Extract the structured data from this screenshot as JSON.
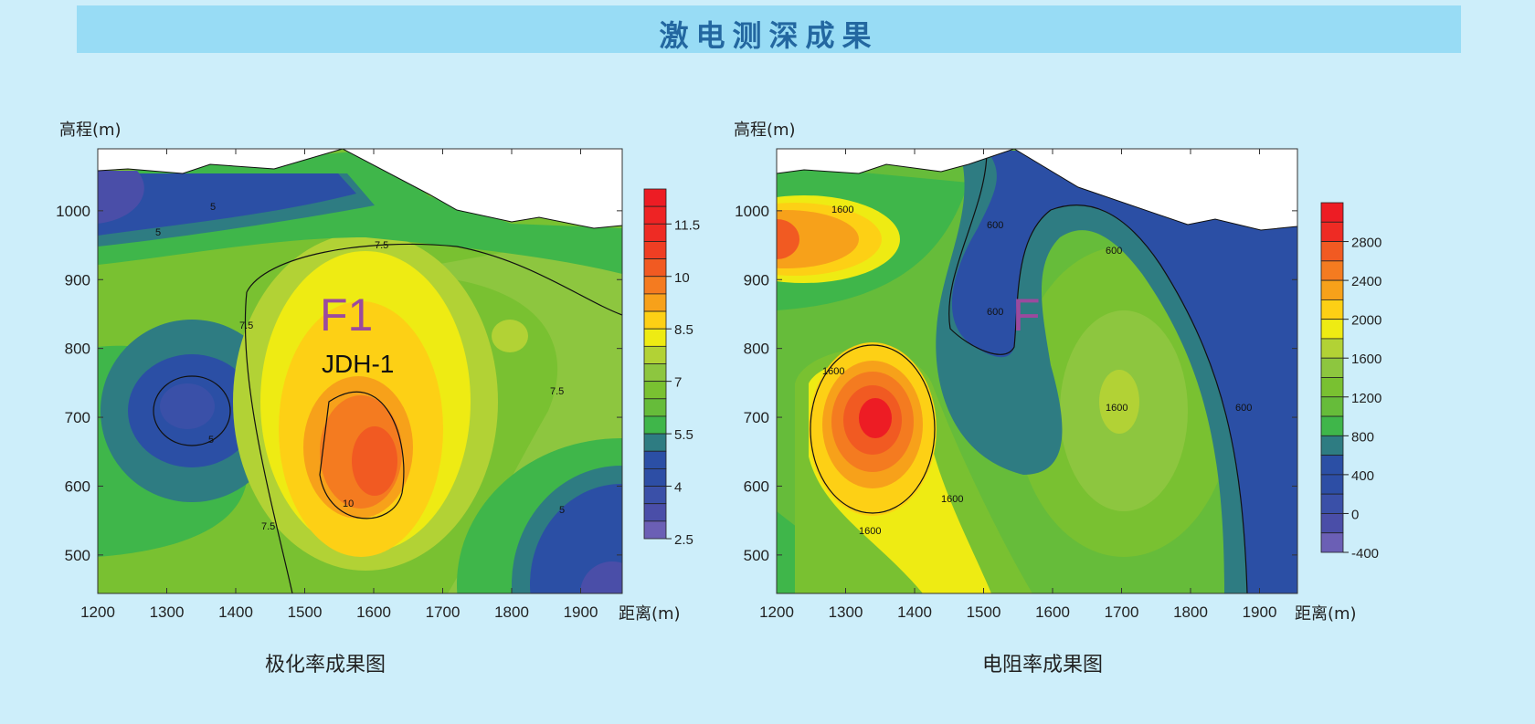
{
  "header": {
    "title": "激电测深成果"
  },
  "chart_data": [
    {
      "type": "heatmap",
      "title": "极化率成果图",
      "ylabel": "高程(m)",
      "xlabel": "距离(m)",
      "x_ticks": [
        "1200",
        "1300",
        "1400",
        "1500",
        "1600",
        "1700",
        "1800",
        "1900"
      ],
      "y_ticks": [
        "1000",
        "900",
        "800",
        "700",
        "600",
        "500"
      ],
      "xlim": [
        1200,
        1960
      ],
      "ylim": [
        445,
        1090
      ],
      "colorbar": {
        "min": 2.5,
        "max": 12.5,
        "step": 0.5,
        "labels": [
          "11.5",
          "10",
          "8.5",
          "7",
          "5.5",
          "4",
          "2.5"
        ],
        "colors": [
          "#ed1c24",
          "#ee2324",
          "#ee2b24",
          "#ef3e23",
          "#f15a22",
          "#f47b20",
          "#f7a11a",
          "#fdd015",
          "#eeeb13",
          "#b2d235",
          "#8dc63f",
          "#79c131",
          "#66bc3a",
          "#3fb64a",
          "#2e7c82",
          "#2b4fa5",
          "#2d4ea5",
          "#3a50a8",
          "#4a4ea8",
          "#6b5fb5"
        ]
      },
      "contour_labels": [
        "5",
        "5",
        "7.5",
        "7.5",
        "7.5",
        "7.5",
        "5",
        "5",
        "10"
      ],
      "annotations": [
        "F1",
        "JDH-1"
      ]
    },
    {
      "type": "heatmap",
      "title": "电阻率成果图",
      "ylabel": "高程(m)",
      "xlabel": "距离(m)",
      "x_ticks": [
        "1200",
        "1300",
        "1400",
        "1500",
        "1600",
        "1700",
        "1800",
        "1900"
      ],
      "y_ticks": [
        "1000",
        "900",
        "800",
        "700",
        "600",
        "500"
      ],
      "xlim": [
        1200,
        1960
      ],
      "ylim": [
        445,
        1090
      ],
      "colorbar": {
        "min": -400,
        "max": 3200,
        "step": 200,
        "labels": [
          "2800",
          "2400",
          "2000",
          "1600",
          "1200",
          "800",
          "400",
          "0",
          "-400"
        ],
        "colors": [
          "#ed1c24",
          "#ee2b24",
          "#f15a22",
          "#f47b20",
          "#f7a11a",
          "#fdd015",
          "#eeeb13",
          "#b2d235",
          "#8dc63f",
          "#79c131",
          "#66bc3a",
          "#3fb64a",
          "#2e7c82",
          "#2b4fa5",
          "#2d4ea5",
          "#3a50a8",
          "#4a4ea8",
          "#6b5fb5"
        ]
      },
      "contour_labels": [
        "1600",
        "600",
        "600",
        "600",
        "600",
        "1600",
        "1600",
        "1600",
        "1600"
      ],
      "annotations": [
        "F"
      ]
    }
  ]
}
